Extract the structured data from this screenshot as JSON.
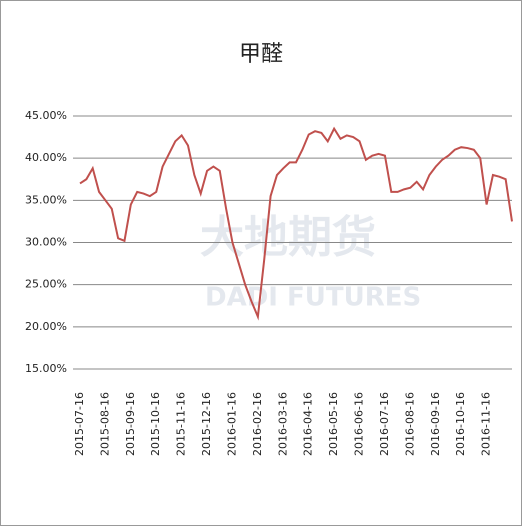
{
  "chart_data": {
    "type": "line",
    "title": "甲醛",
    "watermark": [
      "大地期货",
      "DADI FUTURES"
    ],
    "categories": [
      "2015-07-16",
      null,
      null,
      null,
      "2015-08-16",
      null,
      null,
      null,
      "2015-09-16",
      null,
      null,
      null,
      "2015-10-16",
      null,
      null,
      null,
      "2015-11-16",
      null,
      null,
      null,
      "2015-12-16",
      null,
      null,
      null,
      "2016-01-16",
      null,
      null,
      null,
      "2016-02-16",
      null,
      null,
      null,
      "2016-03-16",
      null,
      null,
      null,
      "2016-04-16",
      null,
      null,
      null,
      "2016-05-16",
      null,
      null,
      null,
      "2016-06-16",
      null,
      null,
      null,
      "2016-07-16",
      null,
      null,
      null,
      "2016-08-16",
      null,
      null,
      null,
      "2016-09-16",
      null,
      null,
      null,
      "2016-10-16",
      null,
      null,
      null,
      "2016-11-16",
      null,
      null,
      null,
      null
    ],
    "series": [
      {
        "name": "甲醛",
        "color": "#c0504d",
        "values": [
          37,
          37.5,
          38.8,
          36,
          35,
          34,
          30.5,
          30.2,
          34.5,
          36,
          35.8,
          35.5,
          36,
          39,
          40.5,
          42,
          42.7,
          41.5,
          38,
          35.8,
          38.5,
          39,
          38.5,
          34,
          30,
          27.5,
          25,
          23,
          21.2,
          28,
          35.5,
          38,
          38.8,
          39.5,
          39.5,
          41,
          42.8,
          43.2,
          43,
          42,
          43.5,
          42.3,
          42.7,
          42.5,
          42,
          39.8,
          40.3,
          40.5,
          40.3,
          36,
          36,
          36.3,
          36.5,
          37.2,
          36.3,
          38,
          39,
          39.8,
          40.3,
          41,
          41.3,
          41.2,
          41,
          40,
          34.5,
          38,
          37.8,
          37.5,
          32.5
        ]
      }
    ],
    "ylim": [
      15,
      45
    ],
    "yticks": [
      {
        "value": 15,
        "label": "15.00%"
      },
      {
        "value": 20,
        "label": "20.00%"
      },
      {
        "value": 25,
        "label": "25.00%"
      },
      {
        "value": 30,
        "label": "30.00%"
      },
      {
        "value": 35,
        "label": "35.00%"
      },
      {
        "value": 40,
        "label": "40.00%"
      },
      {
        "value": 45,
        "label": "45.00%"
      }
    ],
    "grid": true
  }
}
